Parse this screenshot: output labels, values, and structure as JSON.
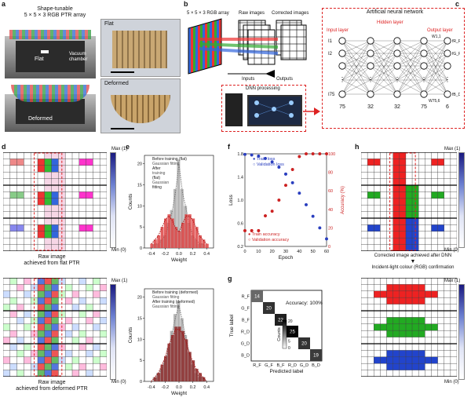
{
  "panels": {
    "a": {
      "label": "a",
      "title_line1": "Shape-tunable",
      "title_line2": "5 × 5 × 3 RGB PTR array",
      "flat_label": "Flat",
      "vacuum_label_line1": "Vacuum",
      "vacuum_label_line2": "chamber",
      "deformed_label": "Deformed",
      "photo_flat_label": "Flat",
      "photo_deformed_label": "Deformed"
    },
    "b": {
      "label": "b",
      "array_label": "5 × 5 × 3 RGB array",
      "raw_label": "Raw images",
      "corrected_label": "Corrected images",
      "inputs_label": "Inputs",
      "outputs_label": "Outputs",
      "dnn_label": "DNN processing"
    },
    "c": {
      "label": "c",
      "title": "Artificial neural network",
      "hidden_label": "Hidden layer",
      "input_label": "Input layer",
      "output_label": "Output layer",
      "layer_sizes": [
        "75",
        "32",
        "32",
        "75",
        "6"
      ],
      "inputs": [
        "I1",
        "I2",
        "I75"
      ],
      "outputs": [
        "fR_F",
        "fG_F",
        "fB_D"
      ],
      "weights": [
        "W1,1",
        "W75,6"
      ]
    },
    "d": {
      "label": "d",
      "caption_flat_line1": "Raw image",
      "caption_flat_line2": "achieved from flat PTR",
      "caption_def_line1": "Raw image",
      "caption_def_line2": "achieved from deformed PTR",
      "max_label": "Max (1)",
      "min_label": "Min (0)"
    },
    "e": {
      "label": "e",
      "ylabel": "Counts",
      "xlabel": "Weight",
      "top_legend": [
        "Before training (flat)",
        "Gaussian fitting",
        "After",
        "training",
        "(flat)",
        "Gaussian",
        "fitting"
      ],
      "bottom_legend": [
        "Before training (deformed)",
        "Gaussian fitting",
        "After training (deformed)",
        "Gaussian fitting"
      ]
    },
    "f": {
      "label": "f",
      "xlabel": "Epoch",
      "ylabel_left": "Loss",
      "ylabel_right": "Accuracy (%)",
      "legend": [
        "Train loss",
        "Validation loss",
        "Train accuracy",
        "Validation accuracy"
      ]
    },
    "g": {
      "label": "g",
      "accuracy_text": "Accuracy: 100%",
      "ylabel": "True label",
      "xlabel": "Predicted label",
      "colorbar_label": "Counts",
      "colorbar_ticks": [
        "20",
        "15",
        "10",
        "5",
        "0"
      ]
    },
    "h": {
      "label": "h",
      "caption_line1": "Corrected image achieved after DNN",
      "caption_line2": "Incident-light colour (RGB) confirmation",
      "max_label": "Max (1)",
      "min_label": "Min (0)"
    }
  },
  "chart_data": [
    {
      "type": "bar",
      "title": "",
      "xlabel": "Weight",
      "ylabel": "Counts",
      "xlim": [
        -0.5,
        0.5
      ],
      "ylim": [
        0,
        22
      ],
      "categories": [
        "-0.40",
        "-0.35",
        "-0.30",
        "-0.25",
        "-0.20",
        "-0.15",
        "-0.10",
        "-0.05",
        "0.00",
        "0.05",
        "0.10",
        "0.15",
        "0.20",
        "0.25",
        "0.30",
        "0.35",
        "0.40"
      ],
      "series": [
        {
          "name": "Before training (flat)",
          "values": [
            0,
            1,
            1,
            2,
            3,
            6,
            9,
            14,
            21,
            14,
            10,
            6,
            3,
            2,
            1,
            1,
            0
          ]
        },
        {
          "name": "After training (flat)",
          "values": [
            1,
            2,
            3,
            5,
            7,
            8,
            7,
            5,
            4,
            6,
            8,
            8,
            7,
            5,
            3,
            2,
            1
          ]
        }
      ]
    },
    {
      "type": "bar",
      "title": "",
      "xlabel": "Weight",
      "ylabel": "Counts",
      "xlim": [
        -0.5,
        0.5
      ],
      "ylim": [
        0,
        22
      ],
      "categories": [
        "-0.40",
        "-0.35",
        "-0.30",
        "-0.25",
        "-0.20",
        "-0.15",
        "-0.10",
        "-0.05",
        "0.00",
        "0.05",
        "0.10",
        "0.15",
        "0.20",
        "0.25",
        "0.30",
        "0.35",
        "0.40"
      ],
      "series": [
        {
          "name": "Before training (deformed)",
          "values": [
            0,
            1,
            2,
            3,
            5,
            8,
            12,
            16,
            19,
            15,
            11,
            7,
            4,
            2,
            1,
            1,
            0
          ]
        },
        {
          "name": "After training (deformed)",
          "values": [
            0,
            1,
            2,
            4,
            6,
            9,
            11,
            13,
            13,
            12,
            10,
            7,
            5,
            3,
            2,
            1,
            0
          ]
        }
      ]
    },
    {
      "type": "line",
      "title": "",
      "xlabel": "Epoch",
      "ylabel": "Loss",
      "xlim": [
        0,
        60
      ],
      "ylim": [
        0.2,
        1.8
      ],
      "y2lim": [
        0,
        100
      ],
      "x": [
        0,
        5,
        10,
        15,
        20,
        25,
        30,
        35,
        40,
        45,
        50,
        55,
        60
      ],
      "series": [
        {
          "name": "Train loss",
          "values": [
            1.79,
            1.78,
            1.76,
            1.72,
            1.66,
            1.57,
            1.45,
            1.3,
            1.12,
            0.92,
            0.72,
            0.52,
            0.33
          ]
        },
        {
          "name": "Validation loss",
          "values": [
            1.79,
            1.78,
            1.76,
            1.72,
            1.66,
            1.57,
            1.45,
            1.3,
            1.12,
            0.92,
            0.72,
            0.52,
            0.33
          ]
        },
        {
          "name": "Train accuracy",
          "values": [
            17,
            17,
            17,
            33,
            38,
            50,
            66,
            83,
            97,
            100,
            100,
            100,
            100
          ]
        },
        {
          "name": "Validation accuracy",
          "values": [
            17,
            17,
            17,
            33,
            38,
            50,
            66,
            83,
            97,
            100,
            100,
            100,
            100
          ]
        }
      ]
    },
    {
      "type": "heatmap",
      "title": "",
      "xlabel": "Predicted label",
      "ylabel": "True label",
      "x": [
        "R_F",
        "G_F",
        "B_F",
        "R_D",
        "G_D",
        "B_D"
      ],
      "y": [
        "R_F",
        "G_F",
        "B_F",
        "R_D",
        "G_D",
        "B_D"
      ],
      "values": [
        [
          14,
          0,
          0,
          0,
          0,
          0
        ],
        [
          0,
          20,
          0,
          0,
          0,
          0
        ],
        [
          0,
          0,
          22,
          0,
          0,
          0
        ],
        [
          0,
          0,
          0,
          25,
          0,
          0
        ],
        [
          0,
          0,
          0,
          0,
          20,
          0
        ],
        [
          0,
          0,
          0,
          0,
          0,
          19
        ]
      ]
    }
  ]
}
